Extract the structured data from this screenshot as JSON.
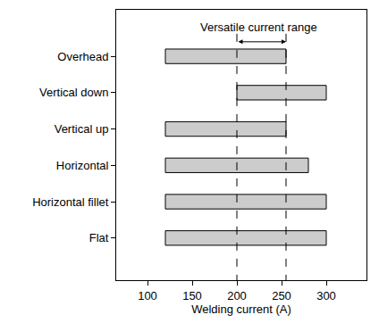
{
  "chart_data": {
    "type": "bar",
    "orientation": "horizontal",
    "categories": [
      "Overhead",
      "Vertical down",
      "Vertical up",
      "Horizontal",
      "Horizontal fillet",
      "Flat"
    ],
    "values": [
      [
        120,
        255
      ],
      [
        200,
        300
      ],
      [
        120,
        255
      ],
      [
        120,
        280
      ],
      [
        120,
        300
      ],
      [
        120,
        300
      ]
    ],
    "color": "#cccccc",
    "xlim": [
      65,
      345
    ],
    "xticks": [
      100,
      150,
      200,
      250,
      300
    ],
    "x_label": "Welding current (A)",
    "grid": false,
    "annotations": [
      {
        "text": "Versatile current range",
        "range": [
          200,
          255
        ]
      }
    ]
  }
}
